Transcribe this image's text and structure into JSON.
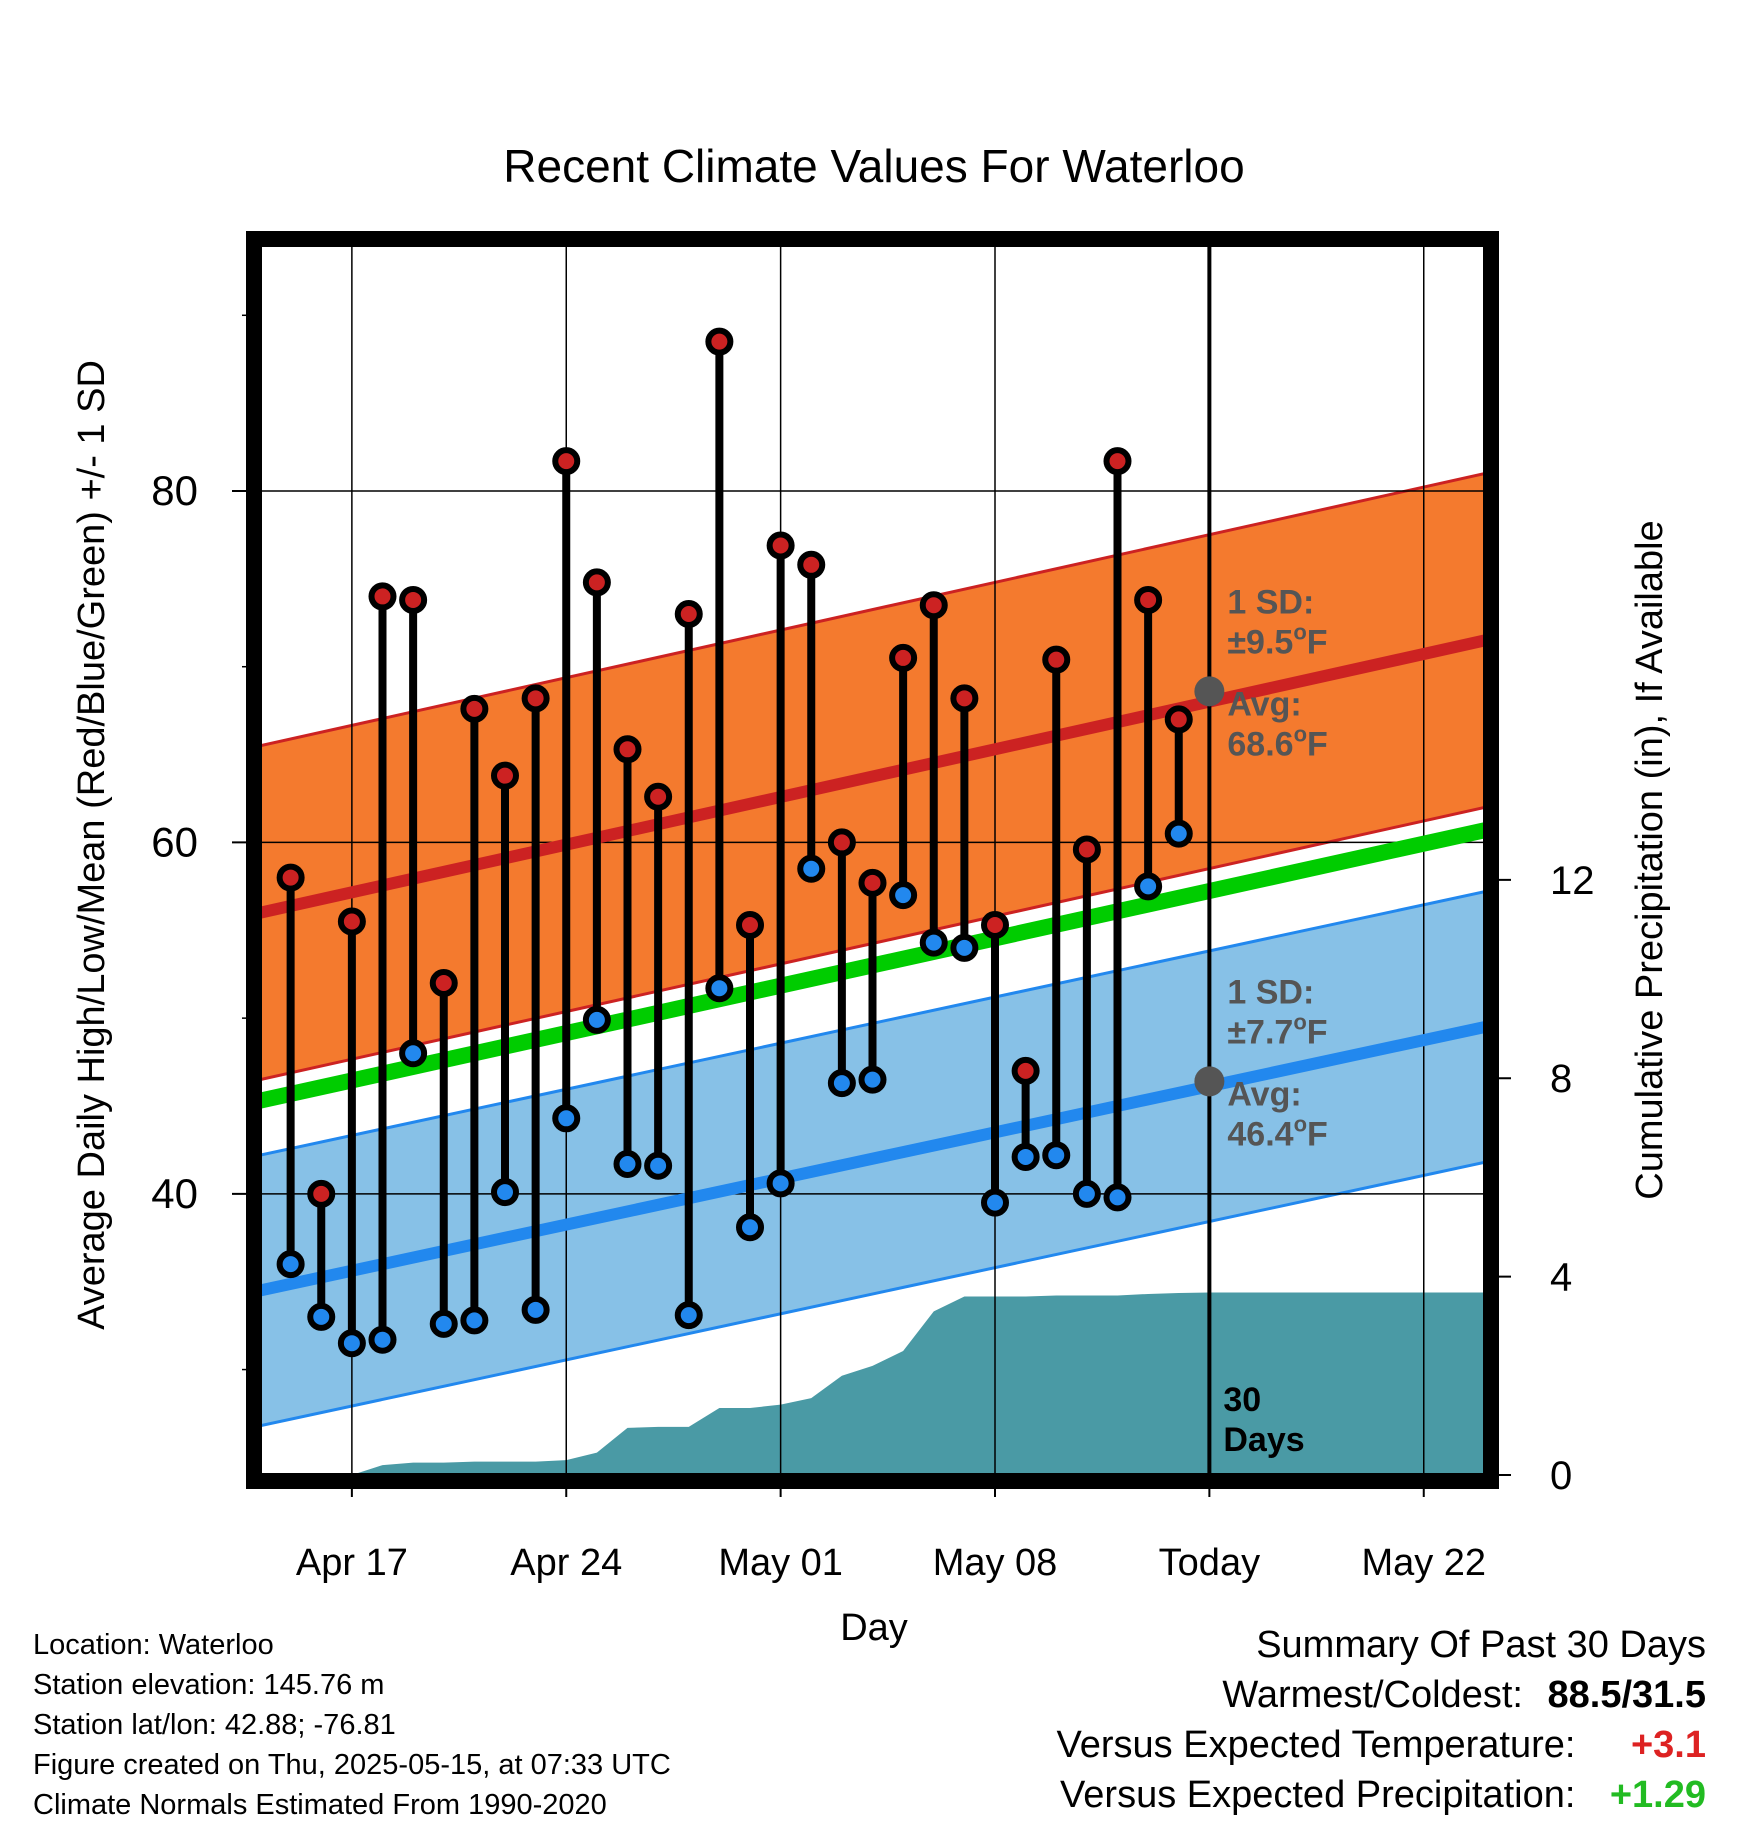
{
  "chart_data": {
    "type": "line",
    "title": "Recent Climate Values For Waterloo",
    "xlabel": "Day",
    "ylabel": "Average Daily High/Low/Mean (Red/Blue/Green) +/- 1 SD",
    "y2label": "Cumulative Precipitation (in), If Available",
    "x_ticks": [
      "Apr 17",
      "Apr 24",
      "May 01",
      "May 08",
      "Today",
      "May 22"
    ],
    "x_tick_dates": [
      "2025-04-17",
      "2025-04-24",
      "2025-05-01",
      "2025-05-08",
      "2025-05-15",
      "2025-05-22"
    ],
    "xlim": [
      "2025-04-14",
      "2025-05-24"
    ],
    "ylim": [
      24,
      94
    ],
    "y_ticks": [
      40,
      60,
      80
    ],
    "y2lim": [
      0,
      24.8
    ],
    "y2_ticks": [
      0,
      4,
      8,
      12
    ],
    "grid": true,
    "observations": {
      "dates": [
        "2025-04-15",
        "2025-04-16",
        "2025-04-17",
        "2025-04-18",
        "2025-04-19",
        "2025-04-20",
        "2025-04-21",
        "2025-04-22",
        "2025-04-23",
        "2025-04-24",
        "2025-04-25",
        "2025-04-26",
        "2025-04-27",
        "2025-04-28",
        "2025-04-29",
        "2025-04-30",
        "2025-05-01",
        "2025-05-02",
        "2025-05-03",
        "2025-05-04",
        "2025-05-05",
        "2025-05-06",
        "2025-05-07",
        "2025-05-08",
        "2025-05-09",
        "2025-05-10",
        "2025-05-11",
        "2025-05-12",
        "2025-05-13",
        "2025-05-14"
      ],
      "high": [
        58,
        40,
        55.5,
        74,
        73.8,
        52,
        67.6,
        63.8,
        68.2,
        81.7,
        74.8,
        65.3,
        62.6,
        73,
        88.5,
        55.3,
        76.9,
        75.8,
        60,
        57.7,
        70.5,
        73.5,
        68.2,
        55.3,
        47,
        70.4,
        59.6,
        81.7,
        73.8,
        67
      ],
      "low": [
        36,
        33,
        31.5,
        31.7,
        48,
        32.6,
        32.8,
        40.1,
        33.4,
        44.3,
        49.9,
        41.7,
        41.6,
        33.1,
        51.7,
        38.1,
        40.6,
        58.5,
        46.3,
        46.5,
        57,
        54.3,
        54,
        39.5,
        42.1,
        42.2,
        40,
        39.8,
        57.5,
        60.5
      ]
    },
    "normals": {
      "dates": [
        "2025-04-14",
        "2025-05-24"
      ],
      "high_avg": [
        56,
        71.5
      ],
      "high_sd": 9.5,
      "low_avg": [
        34.5,
        49.5
      ],
      "low_sd": 7.7,
      "mean_avg": [
        45.3,
        60.7
      ],
      "today_high_avg": 68.6,
      "today_low_avg": 46.4
    },
    "precipitation": {
      "dates": [
        "2025-04-17",
        "2025-04-18",
        "2025-04-19",
        "2025-04-20",
        "2025-04-21",
        "2025-04-22",
        "2025-04-23",
        "2025-04-24",
        "2025-04-25",
        "2025-04-26",
        "2025-04-27",
        "2025-04-28",
        "2025-04-29",
        "2025-04-30",
        "2025-05-01",
        "2025-05-02",
        "2025-05-03",
        "2025-05-04",
        "2025-05-05",
        "2025-05-06",
        "2025-05-07",
        "2025-05-08",
        "2025-05-09",
        "2025-05-10",
        "2025-05-11",
        "2025-05-12",
        "2025-05-13",
        "2025-05-14",
        "2025-05-15",
        "2025-05-24"
      ],
      "cumulative": [
        0,
        0.2,
        0.25,
        0.25,
        0.27,
        0.27,
        0.27,
        0.3,
        0.45,
        0.95,
        0.97,
        0.97,
        1.35,
        1.35,
        1.42,
        1.55,
        2.0,
        2.2,
        2.5,
        3.3,
        3.6,
        3.6,
        3.6,
        3.62,
        3.62,
        3.62,
        3.65,
        3.67,
        3.68,
        3.68
      ]
    },
    "annotations": {
      "high_sd_label": "1 SD:",
      "high_sd_value": "±9.5",
      "high_avg_label": "Avg:",
      "high_avg_value": "68.6",
      "low_sd_label": "1 SD:",
      "low_sd_value": "±7.7",
      "low_avg_label": "Avg:",
      "low_avg_value": "46.4",
      "degree_symbol": "o",
      "unit": "F",
      "period_number": "30",
      "period_unit": "Days"
    },
    "colors": {
      "high": "#cc2222",
      "low": "#2288ee",
      "mean": "#00cc00",
      "high_band": "#f47a2e",
      "low_band": "#87c1e7",
      "precip": "#4a9aa5",
      "annotation": "#555555"
    }
  },
  "metadata": {
    "location": "Location: Waterloo",
    "elevation": "Station elevation: 145.76 m",
    "latlon": "Station lat/lon: 42.88; -76.81",
    "created": "Figure created on Thu, 2025-05-15, at 07:33 UTC",
    "normals": "Climate Normals Estimated From 1990-2020"
  },
  "summary": {
    "title": "Summary Of Past 30 Days",
    "warm_cold_label": "Warmest/Coldest:",
    "warm_cold_value": "88.5/31.5",
    "temp_label": "Versus Expected Temperature:",
    "temp_value": "+3.1",
    "temp_color": "#dd2222",
    "precip_label": "Versus Expected Precipitation:",
    "precip_value": "+1.29",
    "precip_color": "#22bb22"
  }
}
